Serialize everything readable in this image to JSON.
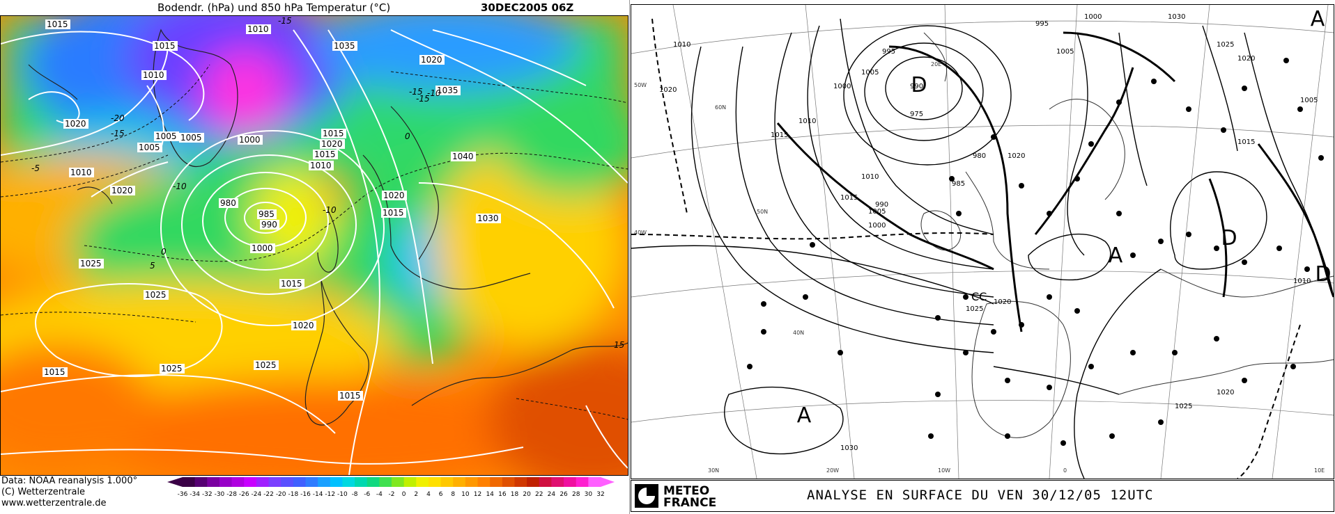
{
  "left": {
    "title": "Bodendr. (hPa) und 850 hPa Temperatur (°C)",
    "datetime": "30DEC2005 06Z",
    "footer": {
      "data_source": "Data: NOAA reanalysis 1.000°",
      "copyright": "(C) Wetterzentrale",
      "website": "www.wetterzentrale.de"
    },
    "colorbar": {
      "ticks": [
        "-36",
        "-34",
        "-32",
        "-30",
        "-28",
        "-26",
        "-24",
        "-22",
        "-20",
        "-18",
        "-16",
        "-14",
        "-12",
        "-10",
        "-8",
        "-6",
        "-4",
        "-2",
        "0",
        "2",
        "4",
        "6",
        "8",
        "10",
        "12",
        "14",
        "16",
        "18",
        "20",
        "22",
        "24",
        "26",
        "28",
        "30",
        "32"
      ],
      "colors": [
        "#3a0046",
        "#560072",
        "#7a00a0",
        "#9800c8",
        "#b000e0",
        "#c800ff",
        "#a020ff",
        "#7a40ff",
        "#5a50ff",
        "#4060ff",
        "#2f7cff",
        "#1aa0ff",
        "#00c0ff",
        "#00d8e0",
        "#00d8b0",
        "#10d880",
        "#40e050",
        "#80e820",
        "#c0f000",
        "#f0f000",
        "#ffe000",
        "#ffc800",
        "#ffb000",
        "#ff9800",
        "#ff8000",
        "#f06800",
        "#e05000",
        "#d03800",
        "#c02000",
        "#d01040",
        "#e01070",
        "#f010a0",
        "#ff20d0",
        "#ff60ff"
      ]
    },
    "isobar_labels": [
      {
        "text": "1015"
      },
      {
        "text": "1015"
      },
      {
        "text": "1010"
      },
      {
        "text": "1005"
      },
      {
        "text": "1010"
      },
      {
        "text": "1020"
      },
      {
        "text": "1005"
      },
      {
        "text": "1005"
      },
      {
        "text": "1000"
      },
      {
        "text": "1010"
      },
      {
        "text": "1015"
      },
      {
        "text": "1020"
      },
      {
        "text": "980"
      },
      {
        "text": "985"
      },
      {
        "text": "990"
      },
      {
        "text": "1000"
      },
      {
        "text": "1025"
      },
      {
        "text": "1020"
      },
      {
        "text": "1015"
      },
      {
        "text": "1010"
      },
      {
        "text": "1035"
      },
      {
        "text": "1020"
      },
      {
        "text": "1035"
      },
      {
        "text": "1040"
      },
      {
        "text": "1020"
      },
      {
        "text": "1015"
      },
      {
        "text": "1030"
      },
      {
        "text": "1025"
      },
      {
        "text": "1025"
      },
      {
        "text": "1020"
      },
      {
        "text": "1015"
      },
      {
        "text": "1025"
      },
      {
        "text": "1015"
      },
      {
        "text": "1015"
      }
    ],
    "temp_labels": [
      {
        "text": "-15"
      },
      {
        "text": "-20"
      },
      {
        "text": "-10"
      },
      {
        "text": "-15"
      },
      {
        "text": "-10"
      },
      {
        "text": "-15"
      },
      {
        "text": "0"
      },
      {
        "text": "0"
      },
      {
        "text": "5"
      },
      {
        "text": "-10"
      },
      {
        "text": "-15"
      },
      {
        "text": "15"
      },
      {
        "text": "-5"
      }
    ]
  },
  "right": {
    "logo_line1": "METEO",
    "logo_line2": "FRANCE",
    "caption": "ANALYSE EN SURFACE DU  VEN  30/12/05  12UTC",
    "pressure_centers": [
      {
        "letter": "D"
      },
      {
        "letter": "A"
      },
      {
        "letter": "A"
      },
      {
        "letter": "D"
      },
      {
        "letter": "D"
      },
      {
        "letter": "A"
      }
    ],
    "isobar_labels": [
      {
        "text": "1010"
      },
      {
        "text": "1020"
      },
      {
        "text": "1015"
      },
      {
        "text": "1010"
      },
      {
        "text": "1005"
      },
      {
        "text": "1000"
      },
      {
        "text": "995"
      },
      {
        "text": "990"
      },
      {
        "text": "985"
      },
      {
        "text": "980"
      },
      {
        "text": "975"
      },
      {
        "text": "990"
      },
      {
        "text": "1000"
      },
      {
        "text": "1005"
      },
      {
        "text": "1010"
      },
      {
        "text": "1015"
      },
      {
        "text": "1020"
      },
      {
        "text": "1025"
      },
      {
        "text": "1030"
      },
      {
        "text": "995"
      },
      {
        "text": "1000"
      },
      {
        "text": "1005"
      },
      {
        "text": "1030"
      },
      {
        "text": "1025"
      },
      {
        "text": "1020"
      },
      {
        "text": "1015"
      },
      {
        "text": "1005"
      },
      {
        "text": "1010"
      },
      {
        "text": "1020"
      },
      {
        "text": "1025"
      },
      {
        "text": "1020"
      }
    ],
    "graticule_labels": [
      {
        "text": "50W"
      },
      {
        "text": "40W"
      },
      {
        "text": "40N"
      },
      {
        "text": "30N"
      },
      {
        "text": "20W"
      },
      {
        "text": "10W"
      },
      {
        "text": "0"
      },
      {
        "text": "10E"
      },
      {
        "text": "20E"
      },
      {
        "text": "60N"
      },
      {
        "text": "50N"
      }
    ],
    "cc_label": "CC"
  }
}
